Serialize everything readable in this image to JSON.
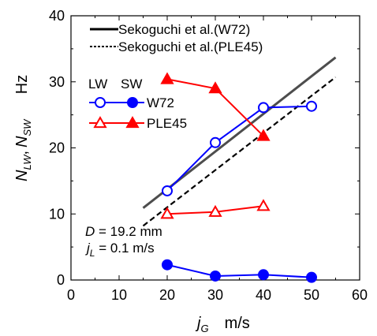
{
  "chart_data": {
    "type": "line",
    "xlim": [
      0,
      60
    ],
    "ylim": [
      0,
      40
    ],
    "xticks": [
      "0",
      "10",
      "20",
      "30",
      "40",
      "50",
      "60"
    ],
    "yticks": [
      "0",
      "10",
      "20",
      "30",
      "40"
    ],
    "xtick_values": [
      0,
      10,
      20,
      30,
      40,
      50,
      60
    ],
    "ytick_values": [
      0,
      10,
      20,
      30,
      40
    ],
    "grid": false,
    "xlabel": {
      "main": "j",
      "sub": "G",
      "unit": "m/s"
    },
    "ylabel": {
      "n1": "N",
      "s1": "LW",
      "comma": ",",
      "n2": "N",
      "s2": "SW",
      "unit": "Hz"
    },
    "legend_position": "top-left",
    "correlation_lines": [
      {
        "name": "Sekoguchi et al.(W72)",
        "style": "solid",
        "color": "#4d4d4d",
        "x": [
          15,
          55
        ],
        "y": [
          10.9,
          33.7
        ]
      },
      {
        "name": "Sekoguchi et al.(PLE45)",
        "style": "dashed",
        "color": "#000000",
        "x": [
          15,
          55
        ],
        "y": [
          8.2,
          30.7
        ]
      }
    ],
    "marker_legend": {
      "header_lw": "LW",
      "header_sw": "SW",
      "entries": [
        {
          "label": "W72",
          "color": "#0000ff",
          "lw_marker": "circle-open",
          "sw_marker": "circle-filled"
        },
        {
          "label": "PLE45",
          "color": "#ff0000",
          "lw_marker": "triangle-open",
          "sw_marker": "triangle-filled"
        }
      ]
    },
    "series": [
      {
        "name": "W72",
        "kind": "LW",
        "color": "#0000ff",
        "marker": "circle-open",
        "x": [
          20,
          30,
          40,
          50
        ],
        "y": [
          13.5,
          20.8,
          26.1,
          26.3
        ]
      },
      {
        "name": "W72",
        "kind": "SW",
        "color": "#0000ff",
        "marker": "circle-filled",
        "x": [
          20,
          30,
          40,
          50
        ],
        "y": [
          2.3,
          0.6,
          0.8,
          0.4
        ]
      },
      {
        "name": "PLE45",
        "kind": "LW",
        "color": "#ff0000",
        "marker": "triangle-open",
        "x": [
          20,
          30,
          40
        ],
        "y": [
          10.0,
          10.3,
          11.2
        ]
      },
      {
        "name": "PLE45",
        "kind": "SW",
        "color": "#ff0000",
        "marker": "triangle-filled",
        "x": [
          20,
          30,
          40
        ],
        "y": [
          30.4,
          29.0,
          21.8
        ]
      }
    ],
    "annotations": {
      "d_symbol": "D",
      "d_value": " = 19.2 mm",
      "jl_main": "j",
      "jl_sub": "L",
      "jl_value": " = 0.1 m/s"
    }
  }
}
